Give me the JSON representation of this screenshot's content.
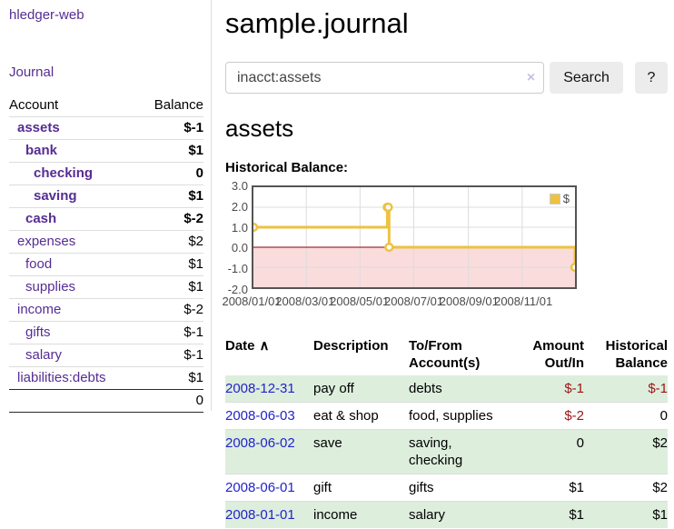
{
  "app": {
    "title": "hledger-web"
  },
  "sidebar": {
    "nav": {
      "journal": "Journal"
    },
    "accounts": {
      "headers": {
        "account": "Account",
        "balance": "Balance"
      },
      "rows": [
        {
          "name": "assets",
          "balance": "$-1"
        },
        {
          "name": "bank",
          "balance": "$1"
        },
        {
          "name": "checking",
          "balance": "0"
        },
        {
          "name": "saving",
          "balance": "$1"
        },
        {
          "name": "cash",
          "balance": "$-2"
        },
        {
          "name": "expenses",
          "balance": "$2"
        },
        {
          "name": "food",
          "balance": "$1"
        },
        {
          "name": "supplies",
          "balance": "$1"
        },
        {
          "name": "income",
          "balance": "$-2"
        },
        {
          "name": "gifts",
          "balance": "$-1"
        },
        {
          "name": "salary",
          "balance": "$-1"
        },
        {
          "name": "liabilities:debts",
          "balance": "$1"
        }
      ],
      "total": "0"
    }
  },
  "main": {
    "title": "sample.journal",
    "search": {
      "value": "inacct:assets",
      "clear_icon": "×",
      "button": "Search",
      "help_button": "?"
    },
    "account_heading": "assets",
    "chart_heading": "Historical Balance:"
  },
  "chart_data": {
    "type": "line",
    "title": "Historical Balance:",
    "series": [
      {
        "name": "$",
        "color": "#edc240",
        "step": true,
        "points": [
          [
            "2008-01-01",
            1
          ],
          [
            "2008-06-01",
            2
          ],
          [
            "2008-06-02",
            2
          ],
          [
            "2008-06-03",
            0
          ],
          [
            "2008-12-31",
            -1
          ]
        ]
      }
    ],
    "x_range": [
      "2008-01-01",
      "2008-12-31"
    ],
    "x_ticks": [
      "2008/01/01",
      "2008/03/01",
      "2008/05/01",
      "2008/07/01",
      "2008/09/01",
      "2008/11/01"
    ],
    "y_ticks": [
      3,
      2,
      1,
      0,
      -1,
      -2
    ],
    "ylim": [
      -2,
      3
    ],
    "grid": true,
    "grid_color": "#dcdcdc",
    "negative_region_color": "#fbdcdc",
    "zero_line_color": "#8b0000",
    "legend_position": "top-right"
  },
  "register": {
    "headers": {
      "date": "Date",
      "sort_icon": "∧",
      "description": "Description",
      "accounts": "To/From Account(s)",
      "amount": "Amount Out/In",
      "balance": "Historical Balance"
    },
    "rows": [
      {
        "date": "2008-12-31",
        "description": "pay off",
        "accounts": "debts",
        "amount": "$-1",
        "balance": "$-1"
      },
      {
        "date": "2008-06-03",
        "description": "eat & shop",
        "accounts": "food, supplies",
        "amount": "$-2",
        "balance": "0"
      },
      {
        "date": "2008-06-02",
        "description": "save",
        "accounts": "saving, checking",
        "amount": "0",
        "balance": "$2"
      },
      {
        "date": "2008-06-01",
        "description": "gift",
        "accounts": "gifts",
        "amount": "$1",
        "balance": "$2"
      },
      {
        "date": "2008-01-01",
        "description": "income",
        "accounts": "salary",
        "amount": "$1",
        "balance": "$1"
      }
    ]
  }
}
